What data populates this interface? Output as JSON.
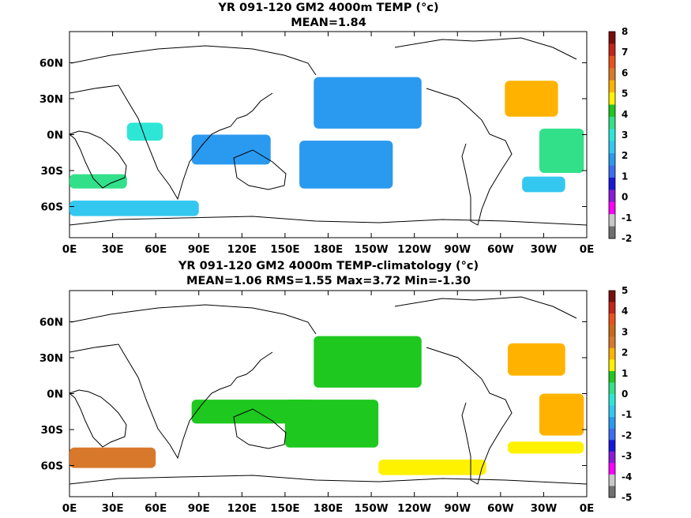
{
  "chart_data": [
    {
      "type": "heatmap",
      "title": "YR 091-120 GM2 4000m TEMP (°c)",
      "subtitle": "MEAN=1.84",
      "x_ticks": [
        "0E",
        "30E",
        "60E",
        "90E",
        "120E",
        "150E",
        "180E",
        "150W",
        "120W",
        "90W",
        "60W",
        "30W",
        "0E"
      ],
      "y_ticks": [
        "60N",
        "30N",
        "0N",
        "30S",
        "60S"
      ],
      "y_tick_values": [
        60,
        30,
        0,
        -30,
        -60
      ],
      "colorbar": {
        "labels": [
          "8",
          "7",
          "6",
          "5",
          "4",
          "3",
          "2",
          "1",
          "0",
          "-1",
          "-2"
        ],
        "values": [
          8,
          7,
          6,
          5,
          4,
          3,
          2,
          1,
          0,
          -1,
          -2
        ],
        "colors": [
          "#7a0e0e",
          "#c22418",
          "#e8521c",
          "#d8782a",
          "#ffb300",
          "#fff200",
          "#1ec81e",
          "#33e08a",
          "#2ee6d6",
          "#34c8f0",
          "#2a9af0",
          "#3b6df0",
          "#1818d8",
          "#8a1ad8",
          "#ff00ff",
          "#c8c8c8",
          "#707070"
        ]
      },
      "regions": [
        {
          "lon": [
            170,
            245
          ],
          "lat": [
            5,
            48
          ],
          "value": 1.6
        },
        {
          "lon": [
            160,
            225
          ],
          "lat": [
            -45,
            -5
          ],
          "value": 1.6
        },
        {
          "lon": [
            85,
            140
          ],
          "lat": [
            -25,
            0
          ],
          "value": 2.0
        },
        {
          "lon": [
            0,
            90
          ],
          "lat": [
            -68,
            -55
          ],
          "value": 2.4
        },
        {
          "lon": [
            303,
            340
          ],
          "lat": [
            15,
            45
          ],
          "value": 5.3
        },
        {
          "lon": [
            327,
            358
          ],
          "lat": [
            -32,
            5
          ],
          "value": 3.7
        },
        {
          "lon": [
            315,
            345
          ],
          "lat": [
            -48,
            -35
          ],
          "value": 2.5
        },
        {
          "lon": [
            0,
            40
          ],
          "lat": [
            -45,
            -33
          ],
          "value": 3.8
        },
        {
          "lon": [
            40,
            65
          ],
          "lat": [
            -5,
            10
          ],
          "value": 3.0
        }
      ]
    },
    {
      "type": "heatmap",
      "title": "YR 091-120 GM2 4000m TEMP-climatology (°c)",
      "subtitle": "MEAN=1.06   RMS=1.55   Max=3.72   Min=-1.30",
      "x_ticks": [
        "0E",
        "30E",
        "60E",
        "90E",
        "120E",
        "150E",
        "180E",
        "150W",
        "120W",
        "90W",
        "60W",
        "30W",
        "0E"
      ],
      "y_ticks": [
        "60N",
        "30N",
        "0N",
        "30S",
        "60S"
      ],
      "y_tick_values": [
        60,
        30,
        0,
        -30,
        -60
      ],
      "colorbar": {
        "labels": [
          "5",
          "4",
          "3",
          "2",
          "1",
          "0",
          "-1",
          "-2",
          "-3",
          "-4",
          "-5"
        ],
        "values": [
          5,
          4,
          3,
          2,
          1,
          0,
          -1,
          -2,
          -3,
          -4,
          -5
        ],
        "colors": [
          "#7a0e0e",
          "#c22418",
          "#e8521c",
          "#c86a1a",
          "#d8782a",
          "#ffb300",
          "#fff200",
          "#1ec81e",
          "#33e08a",
          "#2ee6d6",
          "#34c8f0",
          "#2a9af0",
          "#3b6df0",
          "#1818d8",
          "#8a1ad8",
          "#ff00ff",
          "#c8c8c8",
          "#707070"
        ]
      },
      "regions": [
        {
          "lon": [
            170,
            245
          ],
          "lat": [
            5,
            48
          ],
          "value": 0.6
        },
        {
          "lon": [
            150,
            215
          ],
          "lat": [
            -45,
            -5
          ],
          "value": 0.6
        },
        {
          "lon": [
            85,
            170
          ],
          "lat": [
            -25,
            -5
          ],
          "value": 0.9
        },
        {
          "lon": [
            215,
            290
          ],
          "lat": [
            -68,
            -55
          ],
          "value": 1.3
        },
        {
          "lon": [
            305,
            345
          ],
          "lat": [
            15,
            42
          ],
          "value": 2.2
        },
        {
          "lon": [
            0,
            60
          ],
          "lat": [
            -62,
            -45
          ],
          "value": 2.6
        },
        {
          "lon": [
            305,
            358
          ],
          "lat": [
            -50,
            -40
          ],
          "value": 1.3
        },
        {
          "lon": [
            327,
            358
          ],
          "lat": [
            -35,
            0
          ],
          "value": 1.9
        }
      ]
    }
  ]
}
